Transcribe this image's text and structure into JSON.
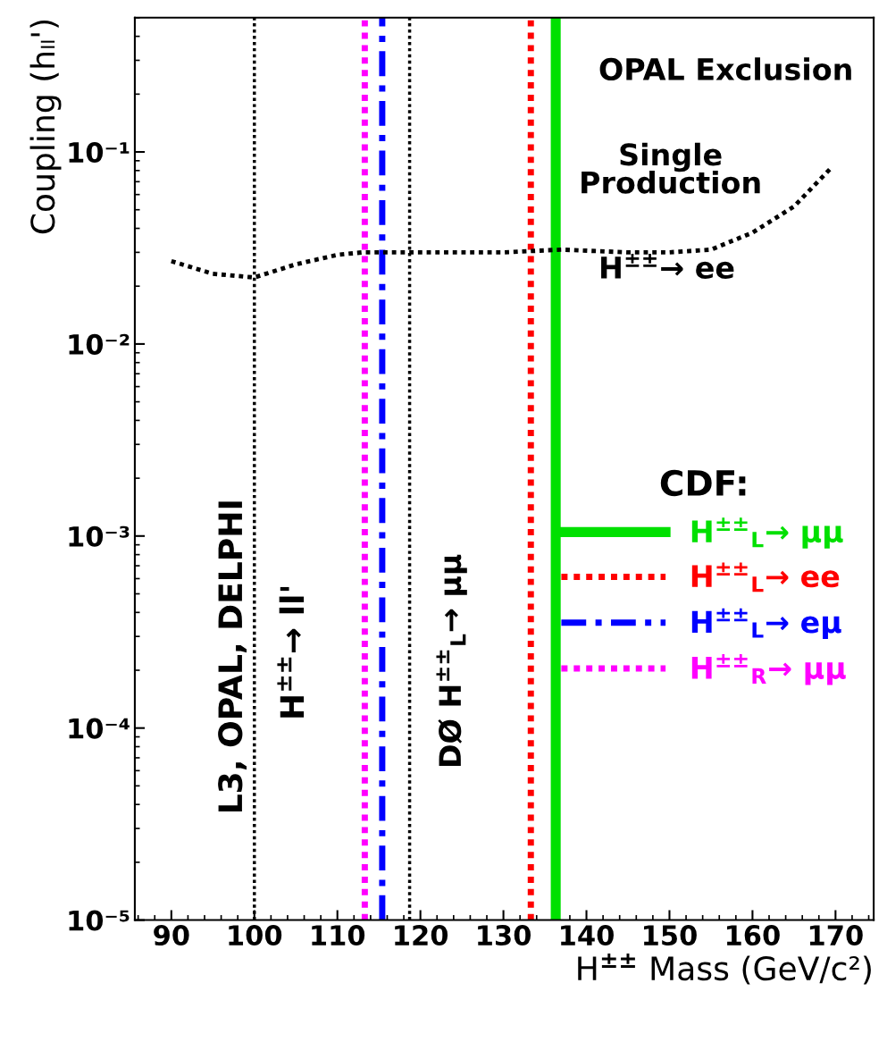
{
  "chart_data": {
    "type": "line",
    "xlabel": "H$^{±±}$ Mass (GeV/c²)",
    "ylabel": "Coupling (hₗₗ')",
    "log": "y",
    "xlim": [
      85.6,
      174.6
    ],
    "xticks": [
      90,
      100,
      110,
      120,
      130,
      140,
      150,
      160,
      170
    ],
    "ylim": [
      1e-05,
      0.5
    ],
    "yticks": [
      {
        "value": 1e-05,
        "label": "10⁻⁵"
      },
      {
        "value": 0.0001,
        "label": "10⁻⁴"
      },
      {
        "value": 0.001,
        "label": "10⁻³"
      },
      {
        "value": 0.01,
        "label": "10⁻²"
      },
      {
        "value": 0.1,
        "label": "10⁻¹"
      }
    ],
    "legend": "right",
    "legend_title": "CDF:",
    "grid": false,
    "series": [
      {
        "color": "#000000",
        "line_style": "dotted",
        "x": [
          90,
          95,
          100,
          105,
          110,
          113,
          120,
          130,
          137,
          145,
          150,
          155,
          160,
          165,
          169.4
        ],
        "values": [
          0.027,
          0.0232,
          0.0222,
          0.026,
          0.0291,
          0.03,
          0.03,
          0.03,
          0.031,
          0.03,
          0.03,
          0.031,
          0.038,
          0.052,
          0.082
        ]
      }
    ],
    "ref_lines": [
      {
        "axis": "x",
        "value": 100,
        "color": "#000000",
        "line_style": "dotted"
      },
      {
        "axis": "x",
        "value": 118.7,
        "color": "#000000",
        "line_style": "dotted"
      },
      {
        "axis": "x",
        "value": 136.3,
        "color": "#00e000",
        "line_style": "solid",
        "label": "H$^{±±}$$_{L}$→ μμ"
      },
      {
        "axis": "x",
        "value": 133.3,
        "color": "#ff0000",
        "line_style": "dotted",
        "label": "H$^{±±}$$_{L}$→ ee"
      },
      {
        "axis": "x",
        "value": 115.4,
        "color": "#0000ff",
        "line_style": "dashed",
        "label": "H$^{±±}$$_{L}$→ eμ"
      },
      {
        "axis": "x",
        "value": 113.3,
        "color": "#ff00ff",
        "line_style": "dotted",
        "label": "H$^{±±}$$_{R}$→ μμ"
      }
    ],
    "annotations": [
      "L3, OPAL, DELPHI",
      "H$^{±±}$→ ll'",
      "DØ H$^{±±}$$_{L}$→ μμ",
      "OPAL Exclusion",
      "Single\nProduction",
      "H$^{±±}$→ ee"
    ]
  }
}
